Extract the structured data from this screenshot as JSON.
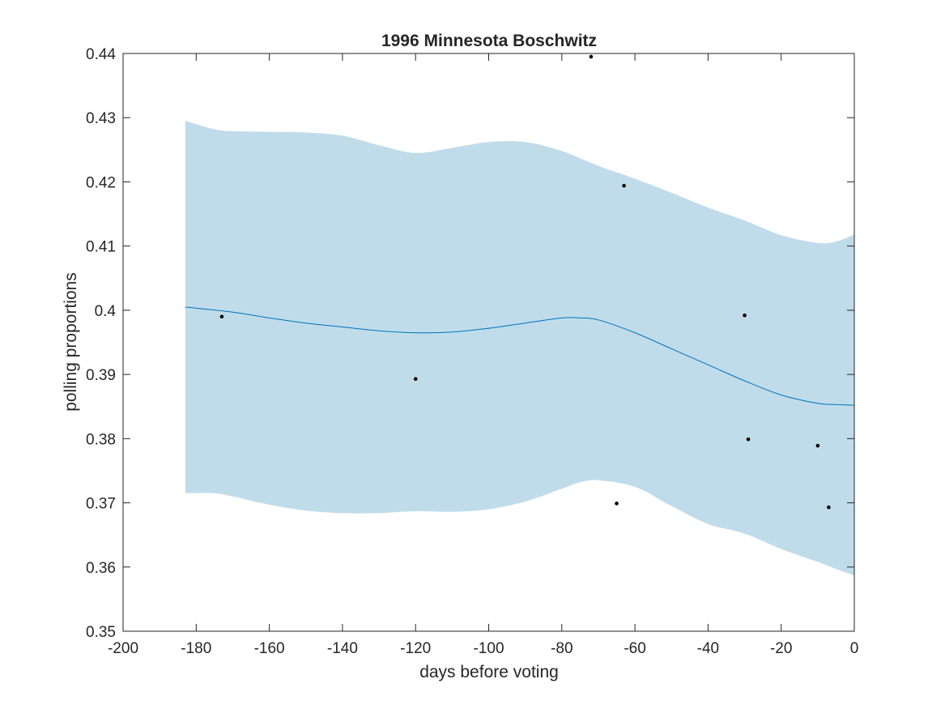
{
  "chart_data": {
    "type": "line",
    "title": "1996 Minnesota Boschwitz",
    "xlabel": "days before voting",
    "ylabel": "polling proportions",
    "xlim": [
      -200,
      0
    ],
    "ylim": [
      0.35,
      0.44
    ],
    "xticks": [
      -200,
      -180,
      -160,
      -140,
      -120,
      -100,
      -80,
      -60,
      -40,
      -20,
      0
    ],
    "yticks": [
      0.35,
      0.36,
      0.37,
      0.38,
      0.39,
      0.4,
      0.41,
      0.42,
      0.43,
      0.44
    ],
    "xtick_labels": [
      "-200",
      "-180",
      "-160",
      "-140",
      "-120",
      "-100",
      "-80",
      "-60",
      "-40",
      "-20",
      "0"
    ],
    "ytick_labels": [
      "0.35",
      "0.36",
      "0.37",
      "0.38",
      "0.39",
      "0.4",
      "0.41",
      "0.42",
      "0.43",
      "0.44"
    ],
    "grid": false,
    "colors": {
      "band": "#c0dcea",
      "line": "#0072bd",
      "points": "#000000",
      "axis": "#262626"
    },
    "series": [
      {
        "kind": "mean_line",
        "x": [
          -183,
          -170,
          -160,
          -150,
          -140,
          -130,
          -120,
          -110,
          -100,
          -90,
          -80,
          -75,
          -70,
          -60,
          -50,
          -40,
          -30,
          -20,
          -10,
          -5,
          0
        ],
        "y": [
          0.4005,
          0.3997,
          0.3988,
          0.398,
          0.3974,
          0.3968,
          0.3965,
          0.3966,
          0.3972,
          0.398,
          0.3988,
          0.3988,
          0.3985,
          0.3965,
          0.394,
          0.3915,
          0.389,
          0.3868,
          0.3855,
          0.3853,
          0.3852
        ]
      },
      {
        "kind": "band_upper",
        "x": [
          -183,
          -175,
          -170,
          -160,
          -150,
          -140,
          -130,
          -120,
          -110,
          -100,
          -90,
          -80,
          -70,
          -60,
          -50,
          -40,
          -30,
          -20,
          -10,
          -5,
          0
        ],
        "y": [
          0.4295,
          0.4282,
          0.4279,
          0.4278,
          0.4277,
          0.4272,
          0.4257,
          0.4245,
          0.4253,
          0.4262,
          0.4262,
          0.4248,
          0.4225,
          0.4205,
          0.4183,
          0.416,
          0.414,
          0.4117,
          0.4105,
          0.4107,
          0.4118
        ]
      },
      {
        "kind": "band_lower",
        "x": [
          -183,
          -175,
          -170,
          -160,
          -150,
          -140,
          -130,
          -120,
          -110,
          -100,
          -90,
          -80,
          -75,
          -70,
          -60,
          -50,
          -40,
          -30,
          -20,
          -10,
          -5,
          0
        ],
        "y": [
          0.3715,
          0.3715,
          0.371,
          0.3697,
          0.3688,
          0.3684,
          0.3684,
          0.3687,
          0.3686,
          0.369,
          0.3702,
          0.3722,
          0.3732,
          0.3735,
          0.3725,
          0.3695,
          0.3667,
          0.3652,
          0.3628,
          0.3608,
          0.3597,
          0.3587
        ]
      },
      {
        "kind": "points",
        "x": [
          -173,
          -120,
          -72,
          -65,
          -63,
          -30,
          -29,
          -10,
          -7
        ],
        "y": [
          0.399,
          0.3893,
          0.4395,
          0.3699,
          0.4194,
          0.3992,
          0.3799,
          0.3789,
          0.3693
        ]
      }
    ]
  }
}
